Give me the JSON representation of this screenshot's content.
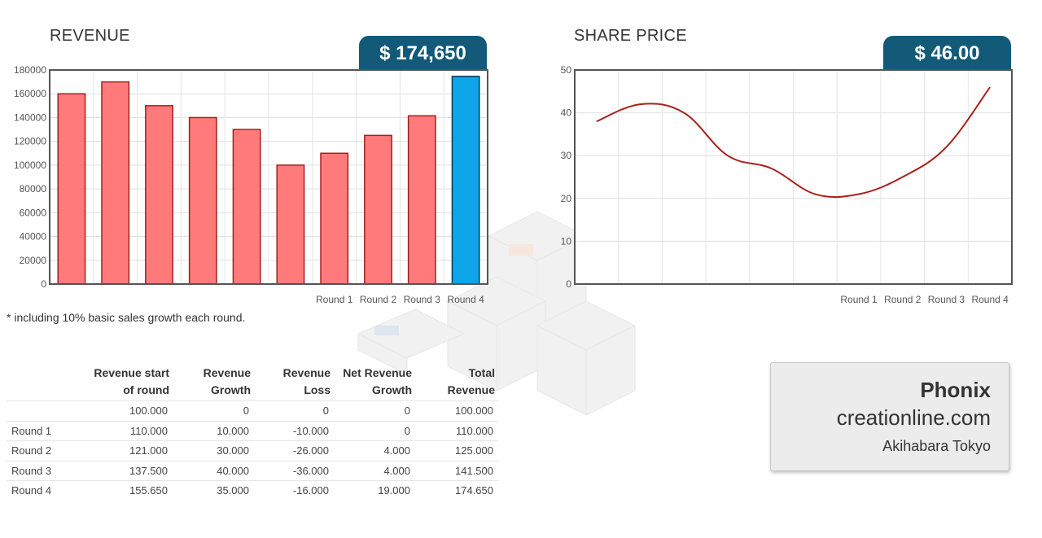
{
  "revenue_panel": {
    "title": "REVENUE",
    "badge": "$ 174,650"
  },
  "share_panel": {
    "title": "SHARE PRICE",
    "badge": "$ 46.00"
  },
  "footnote": "* including 10% basic sales growth each round.",
  "chart_data": [
    {
      "type": "bar",
      "title": "REVENUE",
      "values": [
        160000,
        170000,
        150000,
        140000,
        130000,
        100000,
        110000,
        125000,
        141500,
        174650
      ],
      "x_labels": [
        "",
        "",
        "",
        "",
        "",
        "",
        "Round 1",
        "Round 2",
        "Round 3",
        "Round 4"
      ],
      "ylim": [
        0,
        180000
      ],
      "yticks": [
        0,
        20000,
        40000,
        60000,
        80000,
        100000,
        120000,
        140000,
        160000,
        180000
      ],
      "colors": {
        "past": "#ff7b7b",
        "past_border": "#a02020",
        "current": "#0ea5e9",
        "current_border": "#0b3a5a"
      },
      "grid": true
    },
    {
      "type": "line",
      "title": "SHARE PRICE",
      "values": [
        38,
        42,
        40,
        30,
        27,
        21,
        21,
        25,
        32,
        46
      ],
      "x_labels": [
        "",
        "",
        "",
        "",
        "",
        "",
        "Round 1",
        "Round 2",
        "Round 3",
        "Round 4"
      ],
      "ylim": [
        0,
        50
      ],
      "yticks": [
        0,
        10,
        20,
        30,
        40,
        50
      ],
      "colors": {
        "line": "#a8201a"
      },
      "grid": true
    }
  ],
  "table": {
    "headers": [
      [
        "",
        ""
      ],
      [
        "Revenue start",
        "of round"
      ],
      [
        "Revenue",
        "Growth"
      ],
      [
        "Revenue",
        "Loss"
      ],
      [
        "Net Revenue",
        "Growth"
      ],
      [
        "Total",
        "Revenue"
      ]
    ],
    "rows": [
      {
        "label": "",
        "start": "100.000",
        "growth": "0",
        "loss": "0",
        "net": "0",
        "total": "100.000"
      },
      {
        "label": "Round 1",
        "start": "110.000",
        "growth": "10.000",
        "loss": "-10.000",
        "net": "0",
        "total": "110.000"
      },
      {
        "label": "Round 2",
        "start": "121.000",
        "growth": "30.000",
        "loss": "-26.000",
        "net": "4.000",
        "total": "125.000"
      },
      {
        "label": "Round 3",
        "start": "137.500",
        "growth": "40.000",
        "loss": "-36.000",
        "net": "4.000",
        "total": "141.500"
      },
      {
        "label": "Round 4",
        "start": "155.650",
        "growth": "35.000",
        "loss": "-16.000",
        "net": "19.000",
        "total": "174.650"
      }
    ]
  },
  "company": {
    "name": "Phonix",
    "website": "creationline.com",
    "location": "Akihabara Tokyo"
  }
}
